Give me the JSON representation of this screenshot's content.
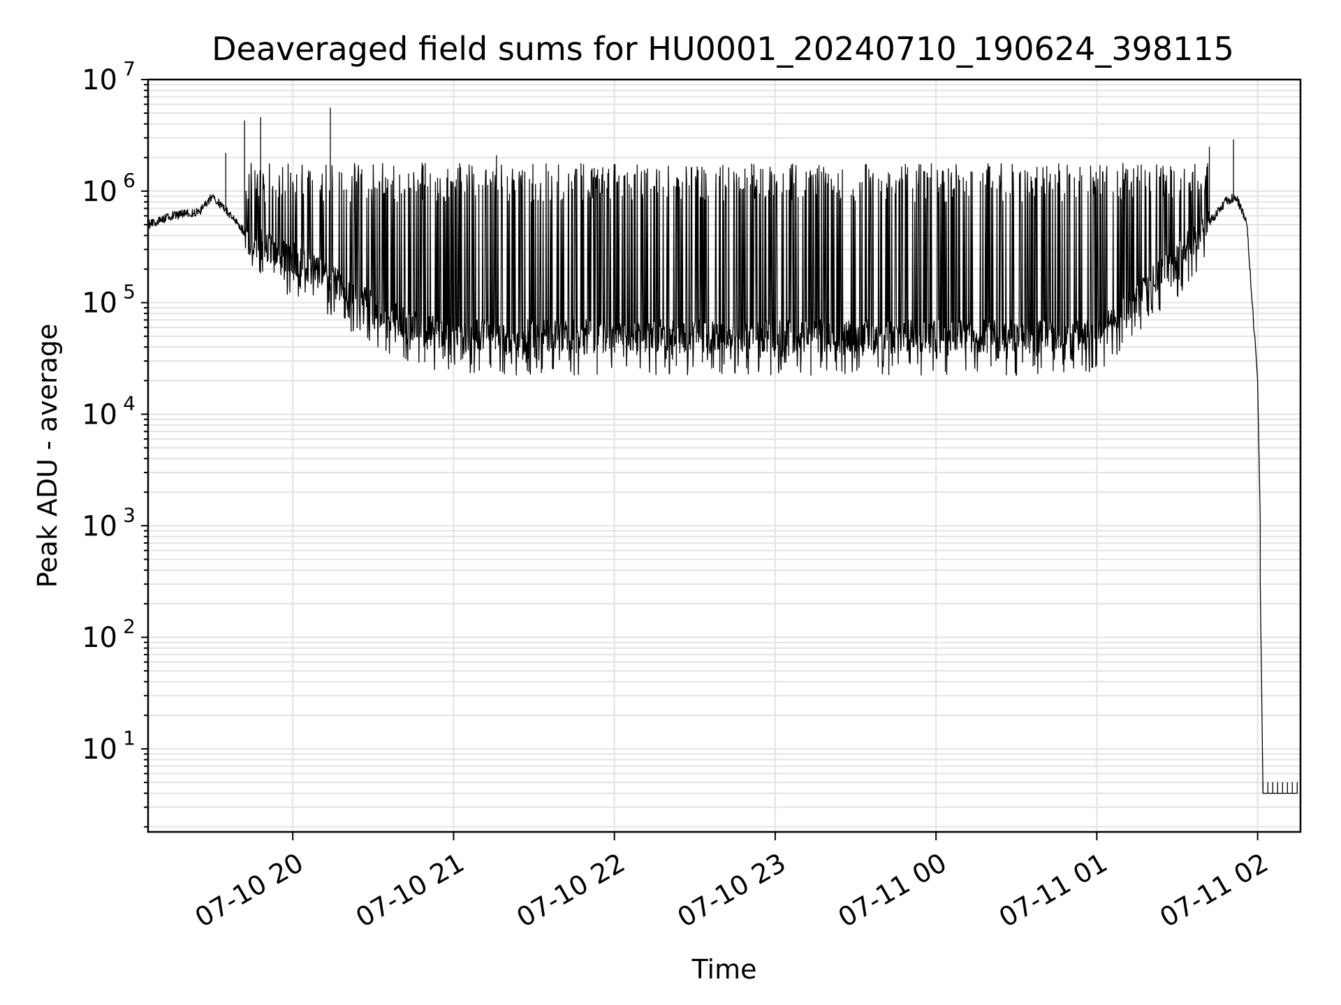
{
  "chart_data": {
    "type": "line",
    "title": "Deaveraged field sums for HU0001_20240710_190624_398115",
    "xlabel": "Time",
    "ylabel": "Peak ADU - average",
    "yscale": "log",
    "ylim": [
      1.8,
      10000000
    ],
    "xlim": [
      "2024-07-10 19:06",
      "2024-07-11 02:16"
    ],
    "grid": "both major and minor, light gray",
    "line_color": "#000000",
    "x_tick_labels": [
      "07-10 20",
      "07-10 21",
      "07-10 22",
      "07-10 23",
      "07-11 00",
      "07-11 01",
      "07-11 02"
    ],
    "y_tick_labels": [
      {
        "base": "10",
        "exp": "1"
      },
      {
        "base": "10",
        "exp": "2"
      },
      {
        "base": "10",
        "exp": "3"
      },
      {
        "base": "10",
        "exp": "4"
      },
      {
        "base": "10",
        "exp": "5"
      },
      {
        "base": "10",
        "exp": "6"
      },
      {
        "base": "10",
        "exp": "7"
      }
    ],
    "series": [
      {
        "x": [
          "2024-07-10 19:06",
          "2024-07-10 19:15",
          "2024-07-10 19:25",
          "2024-07-10 19:30",
          "2024-07-10 19:37",
          "2024-07-10 19:45",
          "2024-07-10 19:52",
          "2024-07-10 20:00",
          "2024-07-10 20:10",
          "2024-07-10 20:20",
          "2024-07-10 20:30",
          "2024-07-10 20:45",
          "2024-07-10 21:00",
          "2024-07-10 21:30",
          "2024-07-10 22:00",
          "2024-07-10 22:30",
          "2024-07-10 23:00",
          "2024-07-10 23:30",
          "2024-07-11 00:00",
          "2024-07-11 00:30",
          "2024-07-11 01:00",
          "2024-07-11 01:10",
          "2024-07-11 01:20",
          "2024-07-11 01:30",
          "2024-07-11 01:40",
          "2024-07-11 01:48",
          "2024-07-11 01:52",
          "2024-07-11 01:56",
          "2024-07-11 01:58",
          "2024-07-11 02:00",
          "2024-07-11 02:01",
          "2024-07-11 02:02",
          "2024-07-11 02:04",
          "2024-07-11 02:16"
        ],
        "y": [
          500000,
          600000,
          650000,
          900000,
          600000,
          350000,
          300000,
          250000,
          180000,
          130000,
          90000,
          60000,
          50000,
          50000,
          50000,
          50000,
          50000,
          50000,
          50000,
          50000,
          50000,
          80000,
          150000,
          250000,
          450000,
          800000,
          900000,
          500000,
          100000,
          20000,
          1100,
          300,
          4,
          4
        ]
      }
    ],
    "spike_series": {
      "min": [
        35000,
        30000
      ],
      "max": [
        1500000,
        5600000
      ]
    }
  }
}
